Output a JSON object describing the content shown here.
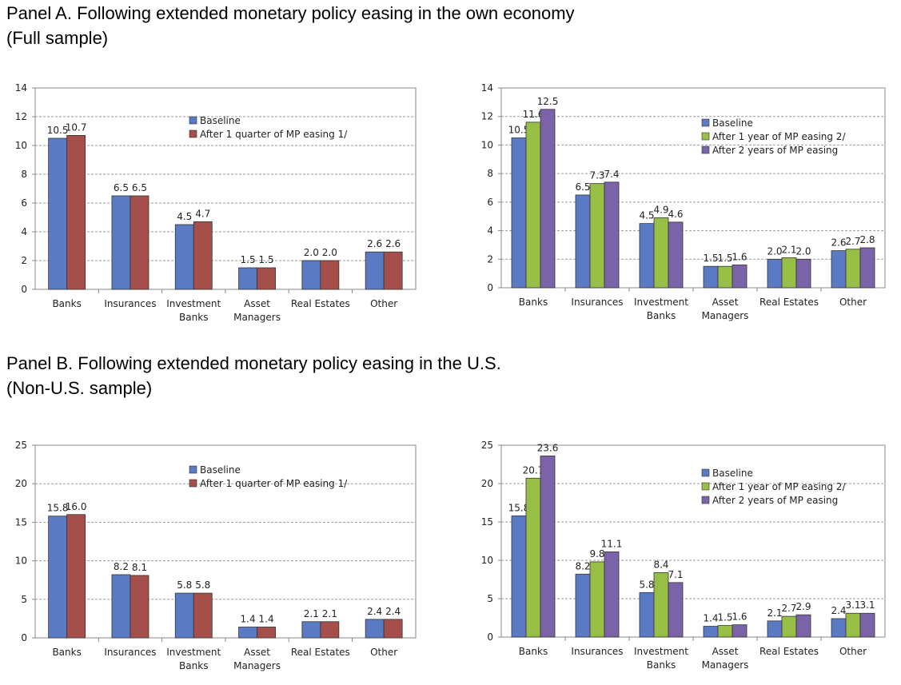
{
  "panel_a": {
    "heading_line1": "Panel A. Following extended monetary policy easing in the own economy",
    "heading_line2": "(Full sample)"
  },
  "panel_b": {
    "heading_line1": "Panel B. Following extended monetary policy easing in the U.S.",
    "heading_line2": "(Non-U.S. sample)"
  },
  "colors": {
    "baseline": "#5b7ac4",
    "after_quarter": "#a54f4a",
    "after_1y": "#97bf47",
    "after_2y": "#7c62a8",
    "axis": "#888888",
    "grid": "#9a9a9a"
  },
  "chart_data": [
    {
      "type": "bar",
      "panel": "A",
      "categories": [
        [
          "Banks"
        ],
        [
          "Insurances"
        ],
        [
          "Investment",
          "Banks"
        ],
        [
          "Asset",
          "Managers"
        ],
        [
          "Real Estates"
        ],
        [
          "Other"
        ]
      ],
      "series": [
        {
          "name": "Baseline",
          "values": [
            10.5,
            6.5,
            4.5,
            1.5,
            2.0,
            2.6
          ]
        },
        {
          "name": "After 1 quarter of MP easing 1/",
          "values": [
            10.7,
            6.5,
            4.7,
            1.5,
            2.0,
            2.6
          ]
        }
      ],
      "ylim": [
        0,
        14
      ],
      "yticks": [
        0,
        2,
        4,
        6,
        8,
        10,
        12,
        14
      ],
      "grid": true,
      "legend": "top-center"
    },
    {
      "type": "bar",
      "panel": "A",
      "categories": [
        [
          "Banks"
        ],
        [
          "Insurances"
        ],
        [
          "Investment",
          "Banks"
        ],
        [
          "Asset",
          "Managers"
        ],
        [
          "Real Estates"
        ],
        [
          "Other"
        ]
      ],
      "series": [
        {
          "name": "Baseline",
          "values": [
            10.5,
            6.5,
            4.5,
            1.5,
            2.0,
            2.6
          ]
        },
        {
          "name": "After 1 year of MP easing 2/",
          "values": [
            11.6,
            7.3,
            4.9,
            1.5,
            2.1,
            2.7
          ]
        },
        {
          "name": "After 2 years of MP easing",
          "values": [
            12.5,
            7.4,
            4.6,
            1.6,
            2.0,
            2.8
          ]
        }
      ],
      "ylim": [
        0,
        14
      ],
      "yticks": [
        0,
        2,
        4,
        6,
        8,
        10,
        12,
        14
      ],
      "grid": true,
      "legend": "top-right"
    },
    {
      "type": "bar",
      "panel": "B",
      "categories": [
        [
          "Banks"
        ],
        [
          "Insurances"
        ],
        [
          "Investment",
          "Banks"
        ],
        [
          "Asset",
          "Managers"
        ],
        [
          "Real Estates"
        ],
        [
          "Other"
        ]
      ],
      "series": [
        {
          "name": "Baseline",
          "values": [
            15.8,
            8.2,
            5.8,
            1.4,
            2.1,
            2.4
          ]
        },
        {
          "name": "After 1 quarter of MP easing 1/",
          "values": [
            16.0,
            8.1,
            5.8,
            1.4,
            2.1,
            2.4
          ]
        }
      ],
      "ylim": [
        0,
        25
      ],
      "yticks": [
        0,
        5,
        10,
        15,
        20,
        25
      ],
      "grid": true,
      "legend": "top-center"
    },
    {
      "type": "bar",
      "panel": "B",
      "categories": [
        [
          "Banks"
        ],
        [
          "Insurances"
        ],
        [
          "Investment",
          "Banks"
        ],
        [
          "Asset",
          "Managers"
        ],
        [
          "Real Estates"
        ],
        [
          "Other"
        ]
      ],
      "series": [
        {
          "name": "Baseline",
          "values": [
            15.8,
            8.2,
            5.8,
            1.4,
            2.1,
            2.4
          ]
        },
        {
          "name": "After 1 year of MP easing 2/",
          "values": [
            20.7,
            9.8,
            8.4,
            1.5,
            2.7,
            3.1
          ]
        },
        {
          "name": "After 2 years of MP easing",
          "values": [
            23.6,
            11.1,
            7.1,
            1.6,
            2.9,
            3.1
          ]
        }
      ],
      "ylim": [
        0,
        25
      ],
      "yticks": [
        0,
        5,
        10,
        15,
        20,
        25
      ],
      "grid": true,
      "legend": "top-right"
    }
  ]
}
